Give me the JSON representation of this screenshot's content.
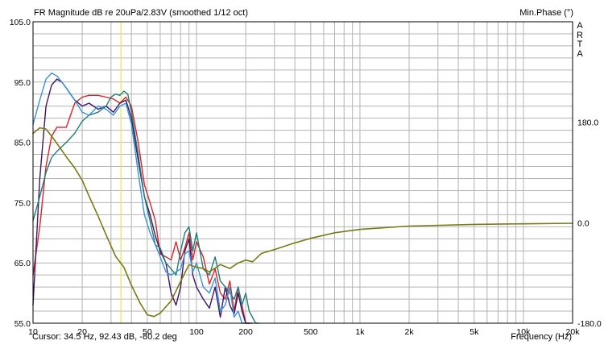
{
  "header": {
    "title": "FR Magnitude dB re 20uPa/2.83V (smoothed 1/12 oct)",
    "phase_title": "Min.Phase (°)",
    "brand_letters": [
      "A",
      "R",
      "T",
      "A"
    ]
  },
  "footer": {
    "cursor_text": "Cursor: 34.5 Hz, 92.43 dB, -80.2 deg",
    "xlabel": "Frequency (Hz)"
  },
  "colors": {
    "grid": "#b4b4b4",
    "cursor": "#e6e64a",
    "red": "#d8232a",
    "dark_purple": "#3c1763",
    "teal": "#1e7f77",
    "light_blue": "#3a92d8",
    "olive_phase": "#7a7a15"
  },
  "chart_data": {
    "type": "line",
    "title": "FR Magnitude dB re 20uPa/2.83V (smoothed 1/12 oct)",
    "xlabel": "Frequency (Hz)",
    "ylabel": "",
    "x_scale": "log",
    "xlim": [
      10,
      20000
    ],
    "ylim": [
      55.0,
      105.0
    ],
    "y2lim": [
      -180.0,
      360.0
    ],
    "x_ticks": [
      10,
      20,
      50,
      100,
      200,
      500,
      1000,
      2000,
      5000,
      10000,
      20000
    ],
    "x_tick_labels": [
      "10",
      "20",
      "50",
      "100",
      "200",
      "500",
      "1k",
      "2k",
      "5k",
      "10k",
      "20k"
    ],
    "y_ticks": [
      55.0,
      65.0,
      75.0,
      85.0,
      95.0,
      105.0
    ],
    "y_tick_labels": [
      "55.0",
      "65.0",
      "75.0",
      "85.0",
      "95.0",
      "105.0"
    ],
    "y2_ticks": [
      -180.0,
      0.0,
      180.0
    ],
    "y2_tick_labels": [
      "-180.0",
      "0.0",
      "180.0"
    ],
    "grid": true,
    "cursor": {
      "x": 34.5
    },
    "series": [
      {
        "color": "#d8232a",
        "axis": "left",
        "x": [
          10,
          11,
          12,
          13,
          14,
          16,
          18,
          20,
          22,
          25,
          28,
          31,
          34,
          37,
          40,
          44,
          48,
          52,
          56,
          60,
          65,
          70,
          75,
          80,
          85,
          90,
          95,
          100,
          110,
          120,
          130,
          140,
          150,
          160,
          170,
          180,
          190,
          200,
          210,
          220
        ],
        "y": [
          63,
          71,
          81,
          86,
          87.5,
          87.5,
          91.5,
          92.5,
          92.8,
          92.8,
          92.5,
          92.2,
          91.5,
          92.5,
          91,
          85,
          78,
          75,
          72,
          66.5,
          66,
          65.5,
          68.5,
          65.5,
          67.5,
          70,
          65.5,
          68.5,
          66,
          61.5,
          64,
          60,
          59,
          62,
          57,
          61,
          58,
          55,
          55,
          55
        ]
      },
      {
        "color": "#3c1763",
        "axis": "left",
        "x": [
          10,
          11,
          12,
          13,
          14,
          15,
          16,
          18,
          20,
          22,
          25,
          28,
          31,
          34,
          37,
          40,
          44,
          48,
          52,
          56,
          60,
          65,
          70,
          75,
          80,
          85,
          90,
          95,
          100,
          110,
          120,
          130,
          140,
          150,
          160,
          170,
          180,
          190,
          200,
          210
        ],
        "y": [
          58,
          79,
          91,
          94.5,
          95.5,
          95,
          94,
          92,
          91,
          91.5,
          90.5,
          91,
          90,
          91.5,
          92,
          89,
          82,
          76,
          73,
          69.5,
          67,
          65,
          60,
          58,
          61,
          67,
          69,
          63,
          61,
          59,
          57.5,
          61,
          56,
          61,
          58,
          56.5,
          60,
          57,
          55,
          55
        ]
      },
      {
        "color": "#1e7f77",
        "axis": "left",
        "x": [
          10,
          11,
          12,
          13,
          14,
          16,
          18,
          20,
          22,
          25,
          28,
          30,
          32,
          34,
          36,
          38,
          40,
          44,
          48,
          52,
          56,
          60,
          65,
          70,
          75,
          80,
          85,
          90,
          95,
          100,
          110,
          120,
          130,
          140,
          150,
          160,
          170,
          180,
          190,
          200,
          210,
          220,
          230,
          240
        ],
        "y": [
          72,
          76,
          80,
          82.5,
          83.5,
          85,
          86.5,
          88.5,
          89.5,
          90,
          91,
          92.5,
          93,
          92.8,
          93.5,
          93,
          90,
          83,
          76,
          72,
          68,
          67.5,
          65,
          64,
          63,
          67,
          70,
          71,
          67,
          70,
          64,
          63,
          66,
          62,
          61,
          60,
          59,
          61,
          58,
          60,
          57,
          56,
          55,
          55
        ]
      },
      {
        "color": "#3a92d8",
        "axis": "left",
        "x": [
          10,
          11,
          12,
          13,
          14,
          15,
          16,
          18,
          20,
          22,
          25,
          28,
          31,
          34,
          37,
          40,
          44,
          48,
          52,
          56,
          60,
          65,
          70,
          75,
          80,
          85,
          90,
          95,
          100,
          110,
          120,
          130,
          140,
          150,
          160,
          170,
          180,
          190,
          200
        ],
        "y": [
          88,
          92,
          95.5,
          96.5,
          96,
          95,
          94,
          92,
          90,
          89.5,
          91,
          90.5,
          89.5,
          91,
          91.5,
          88,
          80,
          73,
          70,
          68,
          66,
          63.5,
          63,
          63.5,
          64,
          66.5,
          67,
          63.5,
          65,
          61,
          60,
          62.5,
          57,
          58,
          61,
          56,
          57,
          55,
          55
        ]
      },
      {
        "color": "#7a7a15",
        "axis": "right",
        "x": [
          10,
          11,
          12,
          13,
          14,
          16,
          18,
          20,
          22,
          25,
          28,
          32,
          36,
          40,
          45,
          50,
          55,
          60,
          70,
          80,
          90,
          100,
          110,
          120,
          140,
          160,
          180,
          200,
          220,
          250,
          300,
          400,
          500,
          700,
          1000,
          2000,
          5000,
          10000,
          20000
        ],
        "y": [
          160,
          170,
          168,
          155,
          142,
          118,
          98,
          76,
          48,
          12,
          -22,
          -60,
          -80,
          -112,
          -143,
          -165,
          -168,
          -162,
          -140,
          -105,
          -75,
          -80,
          -82,
          -88,
          -75,
          -82,
          -72,
          -67,
          -70,
          -55,
          -48,
          -36,
          -28,
          -18,
          -12,
          -6,
          -3,
          -2,
          -1
        ]
      }
    ]
  }
}
